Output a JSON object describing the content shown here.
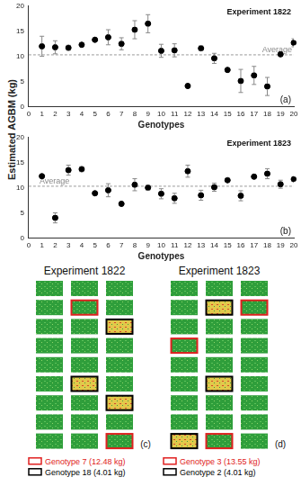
{
  "chart_data": [
    {
      "type": "scatter",
      "title": "Experiment 1822",
      "panel_label": "(a)",
      "ylabel": "Estimated AGBM (kg)",
      "xlabel": "Genotypes",
      "x": [
        1,
        2,
        3,
        4,
        5,
        6,
        7,
        8,
        9,
        10,
        11,
        12,
        13,
        14,
        15,
        16,
        17,
        18,
        19,
        20
      ],
      "values": [
        12.0,
        11.8,
        11.7,
        12.3,
        13.3,
        13.8,
        12.5,
        15.3,
        16.5,
        11.1,
        11.2,
        4.1,
        11.6,
        9.6,
        7.3,
        5.1,
        6.2,
        4.0,
        10.4,
        12.7
      ],
      "errors": [
        2.0,
        1.3,
        0.5,
        0.3,
        0.3,
        1.5,
        1.2,
        1.8,
        1.8,
        1.3,
        1.3,
        0.3,
        0.5,
        1.0,
        0.3,
        2.3,
        1.8,
        1.8,
        0.2,
        0.8
      ],
      "average": {
        "value": 10.3,
        "label": "Average"
      },
      "color": "#000000",
      "marker": "circle",
      "xlim": [
        0,
        20
      ],
      "xticks": [
        0,
        1,
        2,
        3,
        4,
        5,
        6,
        7,
        8,
        9,
        10,
        11,
        12,
        13,
        14,
        15,
        16,
        17,
        18,
        19,
        20
      ],
      "ylim": [
        0,
        20
      ],
      "yticks": [
        0,
        5,
        10,
        15,
        20
      ],
      "grid": false
    },
    {
      "type": "scatter",
      "title": "Experiment 1823",
      "panel_label": "(b)",
      "xlabel": "Genotypes",
      "x": [
        1,
        2,
        3,
        4,
        5,
        6,
        7,
        8,
        9,
        10,
        11,
        12,
        13,
        14,
        15,
        16,
        17,
        18,
        19,
        20
      ],
      "values": [
        12.3,
        4.0,
        13.5,
        13.7,
        8.9,
        9.5,
        6.8,
        10.6,
        10.0,
        8.8,
        7.9,
        13.3,
        8.5,
        10.1,
        11.5,
        8.4,
        12.2,
        12.8,
        10.7,
        11.7
      ],
      "errors": [
        0.3,
        1.0,
        1.0,
        0.5,
        0.3,
        1.3,
        0.3,
        1.2,
        0.5,
        1.0,
        1.0,
        1.2,
        1.0,
        0.8,
        0.4,
        1.0,
        0.3,
        1.0,
        0.8,
        0.3
      ],
      "average": {
        "value": 10.3,
        "label": "Average"
      },
      "color": "#000000",
      "marker": "circle",
      "xlim": [
        0,
        20
      ],
      "xticks": [
        0,
        1,
        2,
        3,
        4,
        5,
        6,
        7,
        8,
        9,
        10,
        11,
        12,
        13,
        14,
        15,
        16,
        17,
        18,
        19,
        20
      ],
      "ylim": [
        0,
        20
      ],
      "yticks": [
        0,
        5,
        10,
        15,
        20
      ],
      "grid": false
    }
  ],
  "field_maps": [
    {
      "title": "Experiment 1822",
      "panel_label": "(c)",
      "legend": [
        {
          "label": "Genotype 7 (12.48 kg)",
          "color": "#e02020"
        },
        {
          "label": "Genotype 18 (4.01 kg)",
          "color": "#000000"
        }
      ]
    },
    {
      "title": "Experiment 1823",
      "panel_label": "(d)",
      "legend": [
        {
          "label": "Genotype 3 (13.55 kg)",
          "color": "#e02020"
        },
        {
          "label": "Genotype 2 (4.01 kg)",
          "color": "#000000"
        }
      ]
    }
  ]
}
